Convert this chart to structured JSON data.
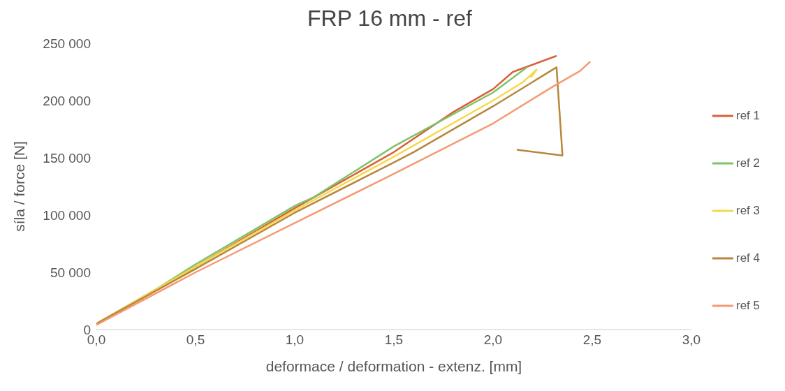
{
  "chart_data": {
    "type": "line",
    "title": "FRP 16 mm - ref",
    "xlabel": "deformace / deformation - extenz. [mm]",
    "ylabel": "síla / force [N]",
    "xlim": [
      0,
      3
    ],
    "xticks": [
      {
        "value": 0,
        "label": "0,0"
      },
      {
        "value": 0.5,
        "label": "0,5"
      },
      {
        "value": 1,
        "label": "1,0"
      },
      {
        "value": 1.5,
        "label": "1,5"
      },
      {
        "value": 2,
        "label": "2,0"
      },
      {
        "value": 2.5,
        "label": "2,5"
      },
      {
        "value": 3,
        "label": "3,0"
      }
    ],
    "ylim": [
      0,
      250000
    ],
    "yticks": [
      {
        "value": 0,
        "label": "0"
      },
      {
        "value": 50000,
        "label": "50 000"
      },
      {
        "value": 100000,
        "label": "100 000"
      },
      {
        "value": 150000,
        "label": "150 000"
      },
      {
        "value": 200000,
        "label": "200 000"
      },
      {
        "value": 250000,
        "label": "250 000"
      }
    ],
    "grid": false,
    "legend": "right",
    "marker": "none",
    "line_style": "solid",
    "series": [
      {
        "name": "ref 1",
        "color": "#d9603b",
        "x": [
          0,
          0.5,
          1.0,
          1.5,
          1.8,
          2.0,
          2.1,
          2.32
        ],
        "values": [
          5000,
          55000,
          106000,
          155000,
          190000,
          210000,
          225000,
          239000
        ]
      },
      {
        "name": "ref 2",
        "color": "#7dc36a",
        "x": [
          0,
          0.3,
          0.5,
          1.0,
          1.1,
          1.5,
          2.0,
          2.17
        ],
        "values": [
          5000,
          35000,
          57000,
          108000,
          116000,
          160000,
          207000,
          229000
        ]
      },
      {
        "name": "ref 3",
        "color": "#f5d94a",
        "x": [
          0,
          0.5,
          1.0,
          1.5,
          2.0,
          2.15,
          2.22,
          2.19
        ],
        "values": [
          5000,
          55000,
          104000,
          151000,
          200000,
          216000,
          227000,
          220000
        ]
      },
      {
        "name": "ref 4",
        "color": "#b8863b",
        "x": [
          0,
          0.5,
          1.0,
          1.5,
          1.6,
          2.0,
          2.32,
          2.35,
          2.12
        ],
        "values": [
          5000,
          53000,
          102000,
          146000,
          155000,
          195000,
          229000,
          152000,
          157000
        ]
      },
      {
        "name": "ref 5",
        "color": "#f59a73",
        "x": [
          0,
          0.5,
          1.0,
          1.5,
          2.0,
          2.3,
          2.4,
          2.44,
          2.49
        ],
        "values": [
          4000,
          50000,
          93000,
          136000,
          180000,
          212000,
          222000,
          226000,
          234000
        ]
      }
    ]
  }
}
